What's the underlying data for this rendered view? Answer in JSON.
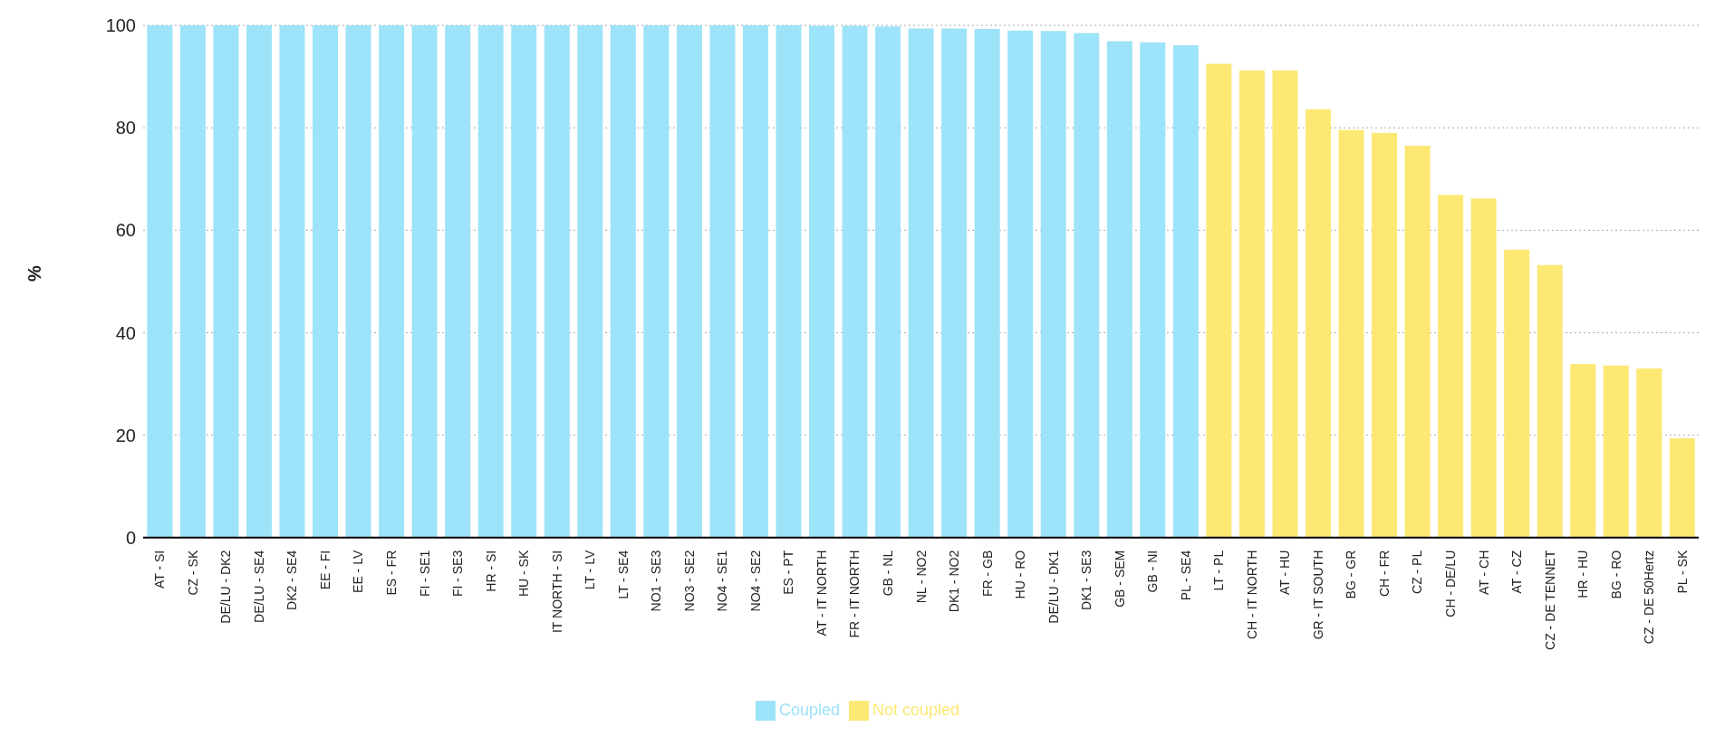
{
  "chart_data": {
    "type": "bar",
    "ylabel": "%",
    "stacked": true,
    "categories": [
      "AT - SI",
      "CZ - SK",
      "DE/LU - DK2",
      "DE/LU - SE4",
      "DK2 - SE4",
      "EE - FI",
      "EE - LV",
      "ES - FR",
      "FI - SE1",
      "FI - SE3",
      "HR - SI",
      "HU - SK",
      "IT NORTH - SI",
      "LT - LV",
      "LT - SE4",
      "NO1 - SE3",
      "NO3 - SE2",
      "NO4 - SE1",
      "NO4 - SE2",
      "ES - PT",
      "AT - IT NORTH",
      "FR - IT NORTH",
      "GB - NL",
      "NL - NO2",
      "DK1 - NO2",
      "FR - GB",
      "HU - RO",
      "DE/LU - DK1",
      "DK1 - SE3",
      "GB - SEM",
      "GB - NI",
      "PL - SE4",
      "LT - PL",
      "CH - IT NORTH",
      "AT - HU",
      "GR - IT SOUTH",
      "BG - GR",
      "CH - FR",
      "CZ - PL",
      "CH - DE/LU",
      "AT - CH",
      "AT - CZ",
      "CZ - DE TENNET",
      "HR - HU",
      "BG - RO",
      "CZ - DE 50Hertz",
      "PL - SK"
    ],
    "series": [
      {
        "name": "Coupled",
        "color": "#9de3f9",
        "values": [
          100,
          100,
          100,
          100,
          100,
          100,
          100,
          100,
          100,
          100,
          100,
          100,
          100,
          100,
          100,
          100,
          100,
          100,
          100,
          100,
          99.9,
          99.9,
          99.8,
          99.4,
          99.4,
          99.3,
          99.0,
          98.9,
          98.5,
          96.9,
          96.7,
          96.1,
          null,
          null,
          null,
          null,
          null,
          null,
          null,
          null,
          null,
          null,
          null,
          null,
          null,
          null,
          null
        ]
      },
      {
        "name": "Not coupled",
        "color": "#fde874",
        "values": [
          null,
          null,
          null,
          null,
          null,
          null,
          null,
          null,
          null,
          null,
          null,
          null,
          null,
          null,
          null,
          null,
          null,
          null,
          null,
          null,
          null,
          null,
          null,
          null,
          null,
          null,
          null,
          null,
          null,
          null,
          null,
          null,
          92.5,
          91.2,
          91.2,
          83.6,
          79.6,
          79.0,
          76.5,
          66.9,
          66.2,
          56.2,
          53.2,
          33.9,
          33.6,
          33.0,
          19.4
        ]
      }
    ],
    "ylim": [
      0,
      100
    ],
    "yticks": [
      0,
      20,
      40,
      60,
      80,
      100
    ],
    "grid": "y",
    "legend": "bottom"
  }
}
